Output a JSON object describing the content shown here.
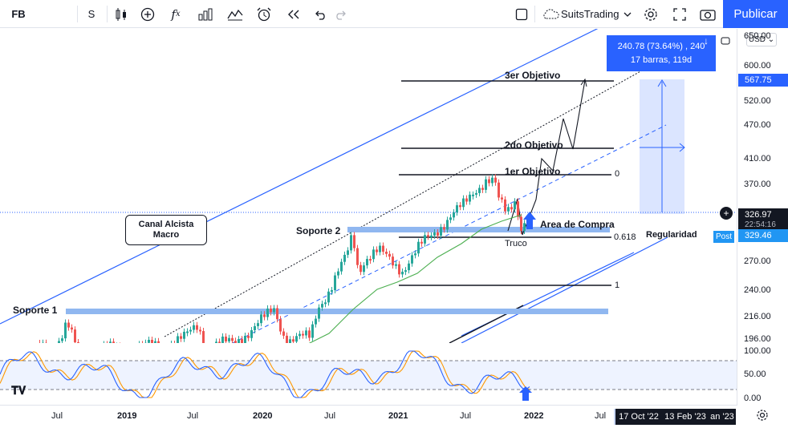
{
  "toolbar": {
    "symbol": "FB",
    "interval": "S",
    "layout_name": "SuitsTrading",
    "publish_label": "Publicar",
    "icons": [
      "candles-icon",
      "plus-circle-icon",
      "fx-icon",
      "bar-chart-icon",
      "indicators-icon",
      "alert-clock-icon",
      "replay-icon",
      "undo-icon",
      "redo-icon",
      "square-icon",
      "cloud-icon",
      "chevron-down-icon",
      "gear-icon",
      "fullscreen-icon",
      "camera-icon"
    ]
  },
  "price_axis": {
    "currency": "USD",
    "ticks": [
      "650.00",
      "600.00",
      "520.00",
      "470.00",
      "410.00",
      "370.00",
      "270.00",
      "240.00",
      "216.00",
      "196.00"
    ],
    "osc_ticks": [
      "100.00",
      "50.00",
      "0.00"
    ],
    "labels": {
      "target": "567.75",
      "last": "326.97",
      "countdown": "22:54:16",
      "post_label": "Post",
      "post": "329.46"
    },
    "colors": {
      "target": "#2962ff",
      "last": "#131722",
      "post": "#2196f3"
    }
  },
  "time_axis": {
    "ticks": [
      "Jul",
      "2019",
      "Jul",
      "2020",
      "Jul",
      "2021",
      "Jul",
      "2022",
      "Jul"
    ],
    "year_ticks": [
      "2019",
      "2020",
      "2021",
      "2022"
    ],
    "range_start": "17 Oct '22",
    "range_end": "13 Feb '23",
    "range_tail": "an '23"
  },
  "measure_box": {
    "line1": "240.78 (73.64%) , 240",
    "line2": "17 barras, 119d"
  },
  "annotations": {
    "target3": "3er Objetivo",
    "target2": "2do Objetivo",
    "target1": "1er Objetivo",
    "fib0": "0",
    "fib618": "0.618",
    "fib1": "1",
    "channel_line1": "Canal Alcista",
    "channel_line2": "Macro",
    "support1": "Soporte 1",
    "support2": "Soporte 2",
    "buy_area": "Area de Compra",
    "trick": "Truco",
    "regularity": "Regularidad"
  },
  "colors": {
    "channel": "#2962ff",
    "support_band": "#90b7f0",
    "bull": "#26a69a",
    "bear": "#ef5350",
    "ma": "#4caf50",
    "stoch_k": "#2962ff",
    "stoch_d": "#ff9800"
  }
}
